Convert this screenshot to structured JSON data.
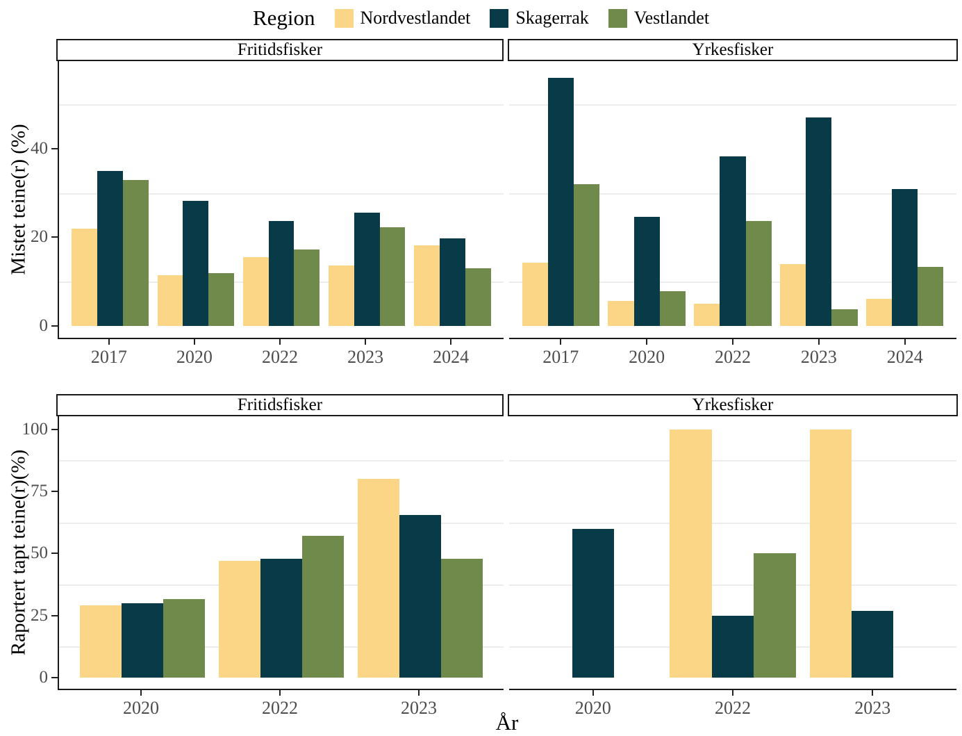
{
  "legend": {
    "title": "Region",
    "items": [
      {
        "label": "Nordvestlandet",
        "color": "#FBD687"
      },
      {
        "label": "Skagerrak",
        "color": "#093A47"
      },
      {
        "label": "Vestlandet",
        "color": "#6F8A4B"
      }
    ]
  },
  "chart_data": [
    {
      "type": "bar",
      "ylabel": "Mistet teine(r) (%)",
      "xlabel": "",
      "categories": [
        "2017",
        "2020",
        "2022",
        "2023",
        "2024"
      ],
      "yticks": [
        0,
        20,
        40
      ],
      "minor_gridlines": [
        10,
        30,
        50
      ],
      "ylim": [
        0,
        60
      ],
      "legend_position": "top",
      "grid": "minor-horizontal-only",
      "facets": [
        {
          "label": "Fritidsfisker",
          "series": [
            {
              "name": "Nordvestlandet",
              "values": [
                22.0,
                11.4,
                15.5,
                13.7,
                18.2
              ]
            },
            {
              "name": "Skagerrak",
              "values": [
                34.9,
                28.2,
                23.6,
                25.6,
                19.7
              ]
            },
            {
              "name": "Vestlandet",
              "values": [
                32.9,
                11.9,
                17.2,
                22.2,
                13.0
              ]
            }
          ]
        },
        {
          "label": "Yrkesfisker",
          "series": [
            {
              "name": "Nordvestlandet",
              "values": [
                14.2,
                5.7,
                5.0,
                13.9,
                6.1
              ]
            },
            {
              "name": "Skagerrak",
              "values": [
                55.9,
                24.6,
                38.2,
                47.1,
                30.8
              ]
            },
            {
              "name": "Vestlandet",
              "values": [
                32.0,
                7.9,
                23.7,
                3.8,
                13.4
              ]
            }
          ]
        }
      ]
    },
    {
      "type": "bar",
      "ylabel": "Raportert tapt teine(r)(%)",
      "xlabel": "År",
      "categories": [
        "2020",
        "2022",
        "2023"
      ],
      "yticks": [
        0,
        25,
        50,
        75,
        100
      ],
      "minor_gridlines": [
        12.5,
        37.5,
        62.5,
        87.5
      ],
      "ylim": [
        0,
        105
      ],
      "grid": "minor-horizontal-only",
      "facets": [
        {
          "label": "Fritidsfisker",
          "series": [
            {
              "name": "Nordvestlandet",
              "values": [
                29,
                47,
                80
              ]
            },
            {
              "name": "Skagerrak",
              "values": [
                30,
                48,
                65.5
              ]
            },
            {
              "name": "Vestlandet",
              "values": [
                31.5,
                57,
                48
              ]
            }
          ]
        },
        {
          "label": "Yrkesfisker",
          "series": [
            {
              "name": "Nordvestlandet",
              "values": [
                null,
                100,
                100
              ]
            },
            {
              "name": "Skagerrak",
              "values": [
                60,
                25,
                27
              ]
            },
            {
              "name": "Vestlandet",
              "values": [
                null,
                50,
                null
              ]
            }
          ]
        }
      ]
    }
  ]
}
